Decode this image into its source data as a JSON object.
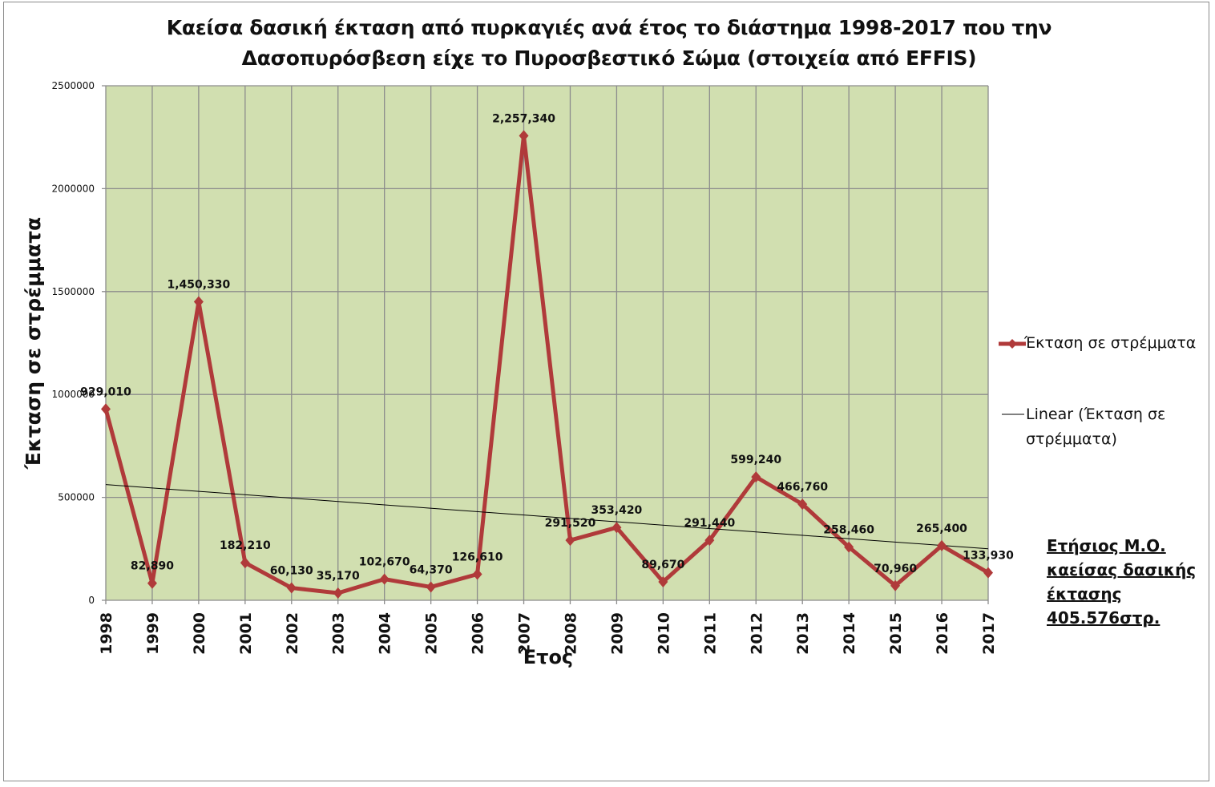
{
  "chart_data": {
    "type": "line",
    "title_line1": "Καείσα δασική έκταση από πυρκαγιές ανά έτος  το διάστημα 1998-2017  που την",
    "title_line2": "Δασοπυρόσβεση είχε το Πυροσβεστικό Σώμα  (στοιχεία από  EFFIS)",
    "xlabel": "Έτος",
    "ylabel": "Έκταση σε στρέμματα",
    "ylim": [
      0,
      2500000
    ],
    "yticks": [
      "0",
      "500000",
      "1000000",
      "1500000",
      "2000000",
      "2500000"
    ],
    "categories": [
      "1998",
      "1999",
      "2000",
      "2001",
      "2002",
      "2003",
      "2004",
      "2005",
      "2006",
      "2007",
      "2008",
      "2009",
      "2010",
      "2011",
      "2012",
      "2013",
      "2014",
      "2015",
      "2016",
      "2017"
    ],
    "series": [
      {
        "name": "Έκταση σε στρέμματα",
        "color": "#b03a3a",
        "values": [
          929010,
          82890,
          1450330,
          182210,
          60130,
          35170,
          102670,
          64370,
          126610,
          2257340,
          291520,
          353420,
          89670,
          291440,
          599240,
          466760,
          258460,
          70960,
          265400,
          133930
        ],
        "labels": [
          "929,010",
          "82,890",
          "1,450,330",
          "182,210",
          "60,130",
          "35,170",
          "102,670",
          "64,370",
          "126,610",
          "2,257,340",
          "291,520",
          "353,420",
          "89,670",
          "291,440",
          "599,240",
          "466,760",
          "258,460",
          "70,960",
          "265,400",
          "133,930"
        ]
      }
    ],
    "trendline": {
      "name": "Linear (Έκταση σε στρέμματα)",
      "type": "linear",
      "start": 562000,
      "end": 250000,
      "color": "#000000"
    },
    "grid": true,
    "plot_background": "#d1dfb0",
    "legend_position": "right",
    "annotation": [
      "Ετήσιος Μ.Ο.",
      "καείσας δασικής",
      "έκτασης",
      "405.576στρ."
    ]
  }
}
